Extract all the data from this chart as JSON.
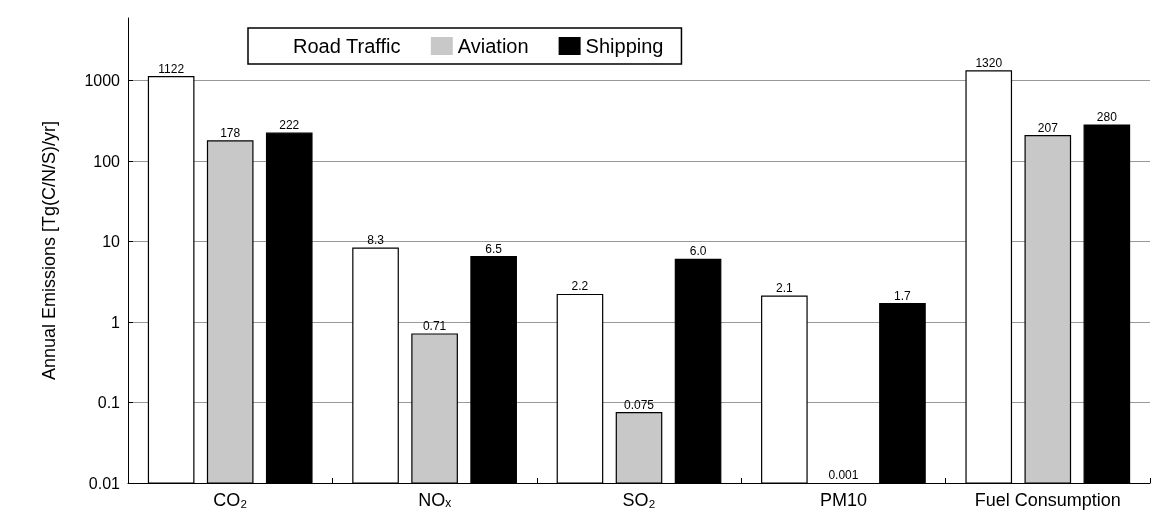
{
  "chart_data": {
    "type": "bar",
    "ylabel": "Annual Emissions [Tg(C/N/S)/yr]",
    "categories": [
      "CO₂",
      "NOₓ",
      "SO₂",
      "PM10",
      "Fuel Consumption"
    ],
    "series": [
      {
        "name": "Road Traffic",
        "color": "#ffffff",
        "values": [
          1122,
          8.3,
          2.2,
          2.1,
          1320
        ],
        "value_labels": [
          "1122",
          "8.3",
          "2.2",
          "2.1",
          "1320"
        ]
      },
      {
        "name": "Aviation",
        "color": "#c8c8c8",
        "values": [
          178,
          0.71,
          0.075,
          null,
          207
        ],
        "value_labels": [
          "178",
          "0.71",
          "0.075",
          null,
          "207"
        ]
      },
      {
        "name": "Shipping",
        "color": "#000000",
        "values": [
          222,
          6.5,
          6.0,
          1.7,
          280
        ],
        "value_labels": [
          "222",
          "6.5",
          "6.0",
          "1.7",
          "280"
        ]
      }
    ],
    "annotations": [
      "0.001"
    ],
    "log": true,
    "ylim": [
      0.01,
      6000
    ],
    "yticks": [
      0.01,
      0.1,
      1,
      10,
      100,
      1000
    ],
    "grid": "y",
    "legend": "top"
  }
}
